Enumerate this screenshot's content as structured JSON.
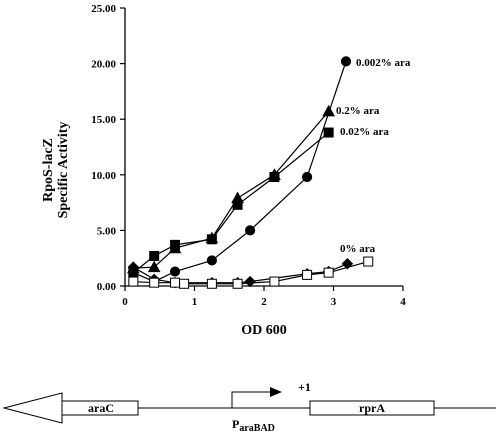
{
  "chart_data": {
    "type": "line",
    "xlabel": "OD 600",
    "ylabel_line1": "RpoS-lacZ",
    "ylabel_line2": "Specific Activity",
    "xlim": [
      0,
      4
    ],
    "ylim": [
      0,
      25
    ],
    "x_ticks": [
      "0",
      "1",
      "2",
      "3",
      "4"
    ],
    "y_ticks": [
      "0.00",
      "5.00",
      "10.00",
      "15.00",
      "20.00",
      "25.00"
    ],
    "grid": false,
    "legend": "inline labels at line ends",
    "series": [
      {
        "name": "0.002% ara",
        "marker": "circle-filled",
        "points": [
          [
            0.12,
            1.2
          ],
          [
            0.42,
            0.4
          ],
          [
            0.72,
            1.3
          ],
          [
            1.25,
            2.3
          ],
          [
            1.8,
            5.0
          ],
          [
            2.62,
            9.8
          ],
          [
            3.18,
            20.2
          ]
        ]
      },
      {
        "name": "0.2% ara",
        "marker": "triangle-filled",
        "points": [
          [
            0.12,
            1.6
          ],
          [
            0.42,
            1.7
          ],
          [
            0.72,
            3.4
          ],
          [
            1.25,
            4.3
          ],
          [
            1.62,
            7.9
          ],
          [
            2.15,
            10.0
          ],
          [
            2.93,
            15.7
          ]
        ]
      },
      {
        "name": "0.02% ara",
        "marker": "square-filled",
        "points": [
          [
            0.12,
            1.2
          ],
          [
            0.42,
            2.7
          ],
          [
            0.72,
            3.7
          ],
          [
            1.25,
            4.2
          ],
          [
            1.62,
            7.3
          ],
          [
            2.15,
            9.8
          ],
          [
            2.93,
            13.8
          ]
        ]
      },
      {
        "name": "0% ara",
        "marker": "diamond-filled",
        "points": [
          [
            0.12,
            1.7
          ],
          [
            0.42,
            0.6
          ],
          [
            0.72,
            0.3
          ],
          [
            1.25,
            0.3
          ],
          [
            1.62,
            0.3
          ],
          [
            1.8,
            0.4
          ],
          [
            2.62,
            1.1
          ],
          [
            2.93,
            1.3
          ],
          [
            3.2,
            2.0
          ]
        ]
      },
      {
        "name": "",
        "marker": "square-open",
        "points": [
          [
            0.12,
            0.4
          ],
          [
            0.42,
            0.3
          ],
          [
            0.72,
            0.3
          ],
          [
            0.85,
            0.2
          ],
          [
            1.25,
            0.2
          ],
          [
            1.62,
            0.2
          ],
          [
            2.15,
            0.4
          ],
          [
            2.62,
            1.0
          ],
          [
            2.93,
            1.2
          ],
          [
            3.5,
            2.2
          ]
        ]
      }
    ]
  },
  "gene_map": {
    "arac_label": "araC",
    "promoter_label": "P",
    "promoter_subscript": "araBAD",
    "start_site_label": "+1",
    "gene_label": "rprA"
  }
}
